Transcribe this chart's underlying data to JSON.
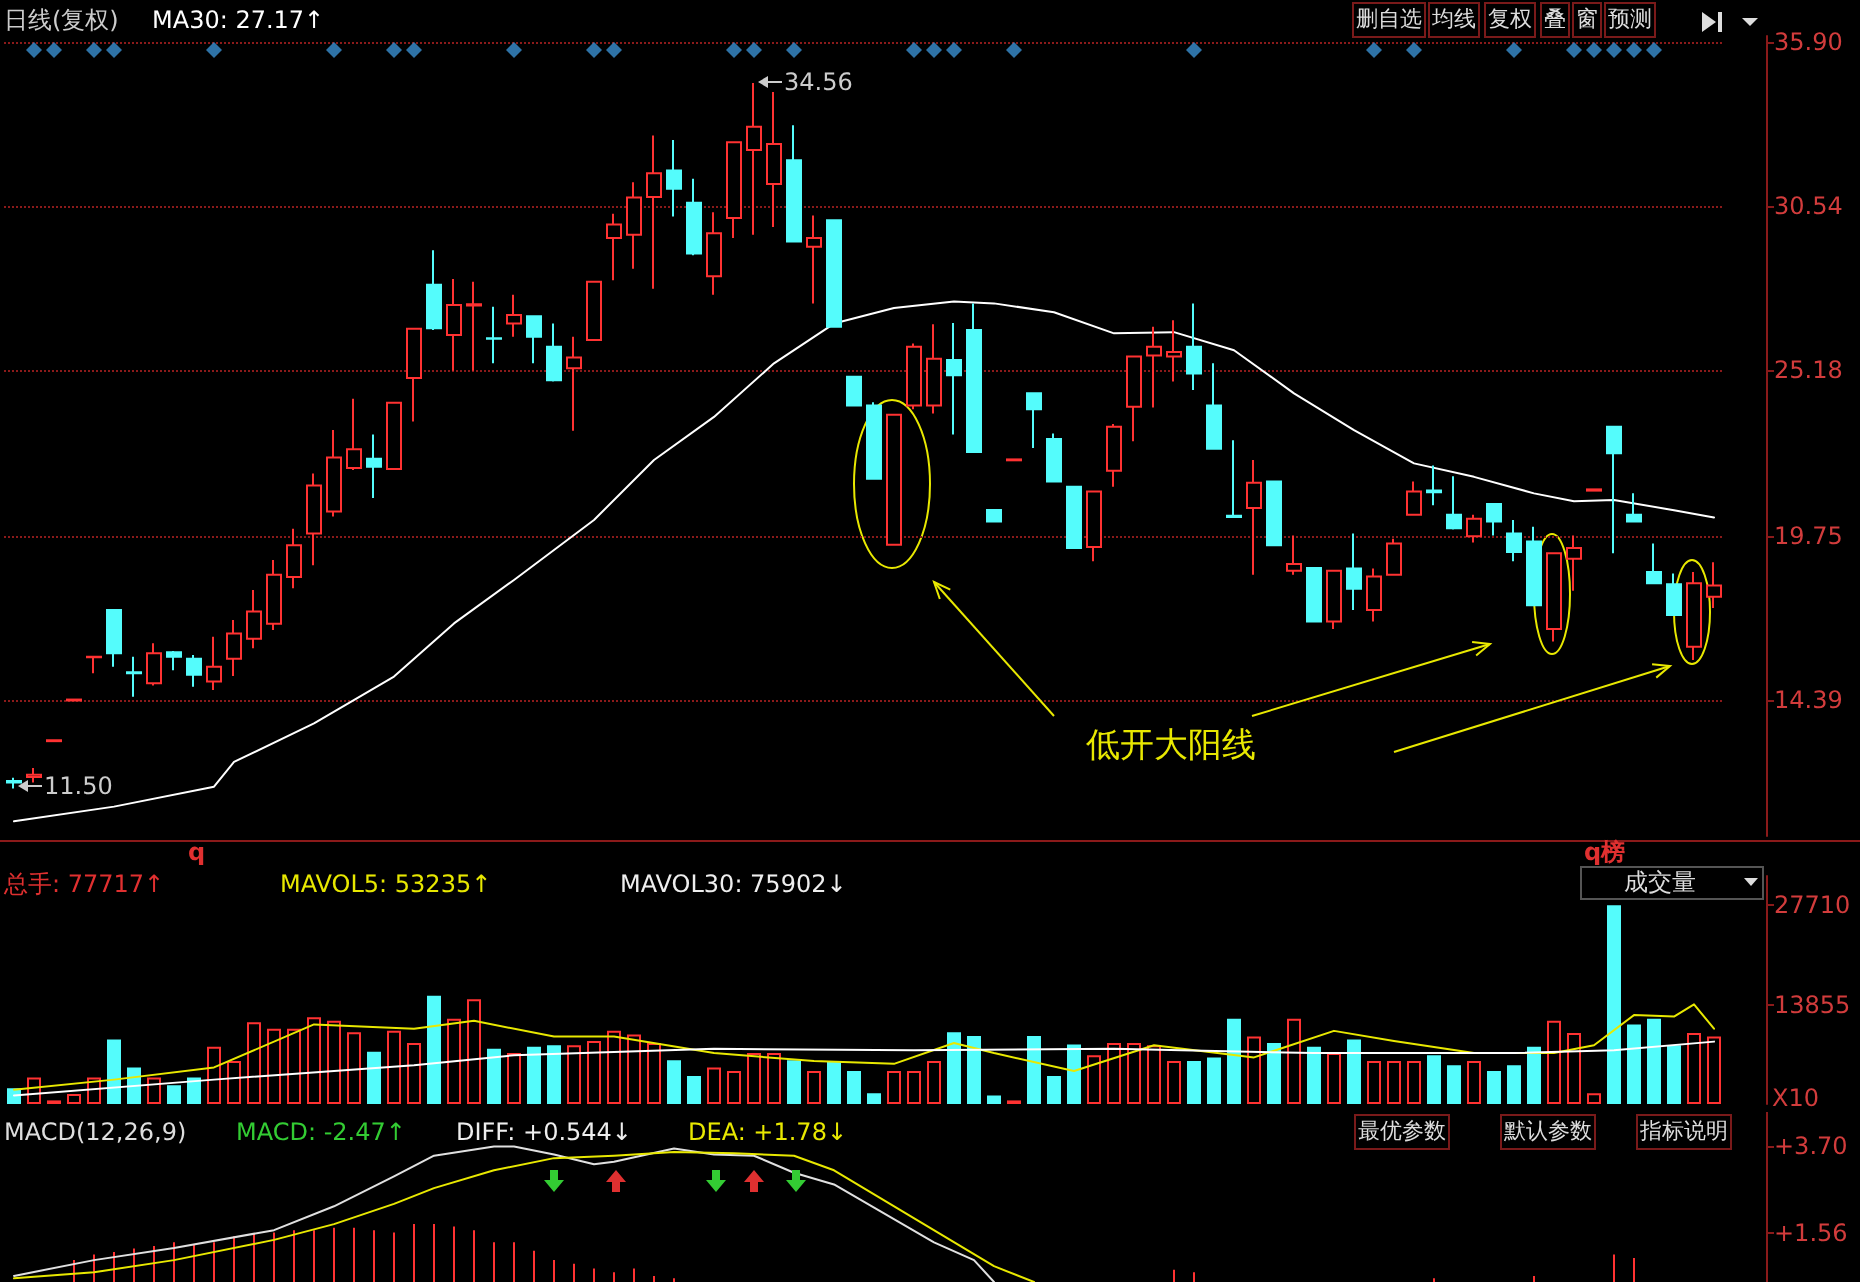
{
  "chart_data": [
    {
      "type": "candlestick",
      "title": "日线(复权)",
      "subtitle": "MA30: 27.17↑",
      "categories": [
        null,
        null,
        null,
        null,
        null,
        null,
        null,
        null,
        null,
        null,
        null,
        null,
        null,
        null,
        null,
        null,
        null,
        null,
        null,
        null,
        null,
        null,
        null,
        null,
        null,
        null,
        null,
        null,
        null,
        null,
        null,
        null,
        null,
        null,
        null,
        null,
        null,
        null,
        null,
        null,
        null,
        null,
        null,
        null,
        null,
        null,
        null,
        null,
        null,
        null,
        null,
        null,
        null,
        null,
        null,
        null,
        null,
        null,
        null,
        null,
        null,
        null,
        null,
        null,
        null,
        null,
        null,
        null,
        null,
        null,
        null,
        null,
        null,
        null,
        null,
        null,
        null,
        null,
        null,
        null,
        null,
        null,
        null,
        null,
        null,
        null
      ],
      "ohlc": [
        [
          11.75,
          11.85,
          11.5,
          11.7
        ],
        [
          11.88,
          12.17,
          11.7,
          11.95
        ],
        [
          13.05,
          13.08,
          13.05,
          13.08
        ],
        [
          14.38,
          14.41,
          14.38,
          14.41
        ],
        [
          15.79,
          15.81,
          15.27,
          15.81
        ],
        [
          17.34,
          17.34,
          15.48,
          15.92
        ],
        [
          15.3,
          15.81,
          14.5,
          15.27
        ],
        [
          14.94,
          16.25,
          14.87,
          15.92
        ],
        [
          15.96,
          16.0,
          15.37,
          15.81
        ],
        [
          15.74,
          15.87,
          14.83,
          15.22
        ],
        [
          15.0,
          16.46,
          14.72,
          15.48
        ],
        [
          15.74,
          17.01,
          15.18,
          16.57
        ],
        [
          16.4,
          17.99,
          16.09,
          17.29
        ],
        [
          16.89,
          18.97,
          16.68,
          18.49
        ],
        [
          18.42,
          19.99,
          18.05,
          19.45
        ],
        [
          19.84,
          21.8,
          18.8,
          21.41
        ],
        [
          20.56,
          23.22,
          20.39,
          22.32
        ],
        [
          21.98,
          24.24,
          21.91,
          22.59
        ],
        [
          22.28,
          23.07,
          21.0,
          22.02
        ],
        [
          21.95,
          24.11,
          21.95,
          24.11
        ],
        [
          24.92,
          26.53,
          23.5,
          26.53
        ],
        [
          27.97,
          29.1,
          26.49,
          26.55
        ],
        [
          26.33,
          28.16,
          25.16,
          27.31
        ],
        [
          27.29,
          28.07,
          25.16,
          27.33
        ],
        [
          26.22,
          27.25,
          25.4,
          26.2
        ],
        [
          26.7,
          27.64,
          26.27,
          26.98
        ],
        [
          26.94,
          26.94,
          25.4,
          26.27
        ],
        [
          25.94,
          26.7,
          24.81,
          24.85
        ],
        [
          25.24,
          26.27,
          23.2,
          25.59
        ],
        [
          26.16,
          28.07,
          26.16,
          28.07
        ],
        [
          29.5,
          30.29,
          28.12,
          29.94
        ],
        [
          29.6,
          31.32,
          28.49,
          30.82
        ],
        [
          30.84,
          32.85,
          27.84,
          31.61
        ],
        [
          31.7,
          32.7,
          30.2,
          31.11
        ],
        [
          30.65,
          31.43,
          28.93,
          28.99
        ],
        [
          28.25,
          30.34,
          27.64,
          29.65
        ],
        [
          30.15,
          32.63,
          29.5,
          32.63
        ],
        [
          32.37,
          34.56,
          29.6,
          33.13
        ],
        [
          31.26,
          34.27,
          29.86,
          32.57
        ],
        [
          32.04,
          33.18,
          29.38,
          29.38
        ],
        [
          29.21,
          30.23,
          27.36,
          29.5
        ],
        [
          30.08,
          30.08,
          26.6,
          26.6
        ],
        [
          24.96,
          24.96,
          24.02,
          24.02
        ],
        [
          24.02,
          24.13,
          21.63,
          21.63
        ],
        [
          19.47,
          23.72,
          19.47,
          23.72
        ],
        [
          24.02,
          26.05,
          23.9,
          25.94
        ],
        [
          24.02,
          26.68,
          23.76,
          25.55
        ],
        [
          25.51,
          26.72,
          23.07,
          25.01
        ],
        [
          26.49,
          27.36,
          22.5,
          22.5
        ],
        [
          20.61,
          20.61,
          20.23,
          20.23
        ],
        [
          22.23,
          22.26,
          22.23,
          22.26
        ],
        [
          24.42,
          24.42,
          22.63,
          23.9
        ],
        [
          22.93,
          23.11,
          21.54,
          21.54
        ],
        [
          21.37,
          21.37,
          19.36,
          19.36
        ],
        [
          19.4,
          21.21,
          18.93,
          21.21
        ],
        [
          21.89,
          23.42,
          21.37,
          23.33
        ],
        [
          23.98,
          25.62,
          22.85,
          25.62
        ],
        [
          25.66,
          26.6,
          23.96,
          25.94
        ],
        [
          25.62,
          26.81,
          24.81,
          25.77
        ],
        [
          25.94,
          27.36,
          24.53,
          25.07
        ],
        [
          24.02,
          25.4,
          22.61,
          22.61
        ],
        [
          20.42,
          22.89,
          20.38,
          20.38
        ],
        [
          20.67,
          22.24,
          18.49,
          21.5
        ],
        [
          21.54,
          21.54,
          19.45,
          19.45
        ],
        [
          18.62,
          19.77,
          18.49,
          18.84
        ],
        [
          18.71,
          18.71,
          16.96,
          16.96
        ],
        [
          16.96,
          18.62,
          16.72,
          18.62
        ],
        [
          18.69,
          19.84,
          17.34,
          18.03
        ],
        [
          17.34,
          18.69,
          16.96,
          18.43
        ],
        [
          18.49,
          19.67,
          18.49,
          19.51
        ],
        [
          20.45,
          21.54,
          20.45,
          21.21
        ],
        [
          21.24,
          22.06,
          20.76,
          21.19
        ],
        [
          20.45,
          21.71,
          19.97,
          20.01
        ],
        [
          19.75,
          20.45,
          19.54,
          20.32
        ],
        [
          20.8,
          20.8,
          19.77,
          20.23
        ],
        [
          19.84,
          20.28,
          18.93,
          19.23
        ],
        [
          19.58,
          20.06,
          17.49,
          17.49
        ],
        [
          16.72,
          19.19,
          16.31,
          19.19
        ],
        [
          19.01,
          19.77,
          17.97,
          19.36
        ],
        [
          21.24,
          21.28,
          21.24,
          21.28
        ],
        [
          23.33,
          23.33,
          19.19,
          22.46
        ],
        [
          20.45,
          21.15,
          20.23,
          20.23
        ],
        [
          18.58,
          19.51,
          18.21,
          18.21
        ],
        [
          18.18,
          18.53,
          17.17,
          17.17
        ],
        [
          16.14,
          18.58,
          15.7,
          18.21
        ],
        [
          17.77,
          18.9,
          17.4,
          18.14
        ]
      ],
      "colors": [
        "#54fcfc",
        "#ff3232",
        "#ff3232",
        "#ff3232",
        "#ff3232",
        "#54fcfc",
        "#54fcfc",
        "#ff3232",
        "#54fcfc",
        "#54fcfc",
        "#ff3232",
        "#ff3232",
        "#ff3232",
        "#ff3232",
        "#ff3232",
        "#ff3232",
        "#ff3232",
        "#ff3232",
        "#54fcfc",
        "#ff3232",
        "#ff3232",
        "#54fcfc",
        "#ff3232",
        "#ff3232",
        "#54fcfc",
        "#ff3232",
        "#54fcfc",
        "#54fcfc",
        "#ff3232",
        "#ff3232",
        "#ff3232",
        "#ff3232",
        "#ff3232",
        "#54fcfc",
        "#54fcfc",
        "#ff3232",
        "#ff3232",
        "#ff3232",
        "#ff3232",
        "#54fcfc",
        "#ff3232",
        "#54fcfc",
        "#54fcfc",
        "#54fcfc",
        "#ff3232",
        "#ff3232",
        "#ff3232",
        "#54fcfc",
        "#54fcfc",
        "#54fcfc",
        "#ff3232",
        "#54fcfc",
        "#54fcfc",
        "#54fcfc",
        "#ff3232",
        "#ff3232",
        "#ff3232",
        "#ff3232",
        "#ff3232",
        "#54fcfc",
        "#54fcfc",
        "#54fcfc",
        "#ff3232",
        "#54fcfc",
        "#ff3232",
        "#54fcfc",
        "#ff3232",
        "#54fcfc",
        "#ff3232",
        "#ff3232",
        "#ff3232",
        "#54fcfc",
        "#54fcfc",
        "#ff3232",
        "#54fcfc",
        "#54fcfc",
        "#54fcfc",
        "#ff3232",
        "#ff3232",
        "#ff3232",
        "#54fcfc",
        "#54fcfc",
        "#54fcfc",
        "#54fcfc",
        "#ff3232",
        "#ff3232"
      ],
      "series": [
        {
          "type": "line",
          "color": "#ffffff",
          "marker": "none",
          "line_style": "solid",
          "values": [
            10.43,
            null,
            null,
            null,
            null,
            10.91,
            null,
            null,
            null,
            null,
            11.56,
            12.37,
            null,
            null,
            null,
            13.63,
            null,
            null,
            null,
            15.16,
            null,
            null,
            16.9,
            null,
            null,
            18.32,
            null,
            null,
            null,
            20.28,
            null,
            null,
            22.24,
            null,
            null,
            23.65,
            null,
            null,
            25.4,
            null,
            null,
            26.7,
            null,
            null,
            27.21,
            null,
            null,
            27.42,
            null,
            27.36,
            null,
            null,
            27.07,
            null,
            null,
            26.38,
            null,
            null,
            26.42,
            null,
            null,
            25.83,
            null,
            null,
            24.42,
            null,
            null,
            23.22,
            null,
            null,
            22.13,
            null,
            null,
            21.69,
            null,
            null,
            21.15,
            null,
            20.89,
            null,
            20.93,
            null,
            null,
            20.6,
            null,
            20.36
          ]
        },
        {
          "type": "scatter",
          "color": "#3a8fd0",
          "marker": "diamond",
          "values": [
            null,
            35.64,
            35.64,
            null,
            35.64,
            35.64,
            null,
            null,
            null,
            null,
            35.64,
            null,
            null,
            null,
            null,
            null,
            35.64,
            null,
            null,
            35.64,
            35.64,
            null,
            null,
            null,
            null,
            35.64,
            null,
            null,
            null,
            35.64,
            35.64,
            null,
            null,
            null,
            null,
            null,
            35.64,
            35.64,
            null,
            35.64,
            null,
            null,
            null,
            null,
            null,
            35.64,
            35.64,
            35.64,
            null,
            null,
            35.64,
            null,
            null,
            null,
            null,
            null,
            null,
            null,
            null,
            35.64,
            null,
            null,
            null,
            null,
            null,
            null,
            null,
            null,
            35.64,
            null,
            35.64,
            null,
            null,
            null,
            null,
            35.64,
            null,
            null,
            35.64,
            35.64,
            35.64,
            35.64,
            35.64,
            null,
            null,
            null
          ]
        }
      ],
      "ylim": [
        9.95,
        36.1
      ],
      "yticks": [
        {
          "value": 14.39,
          "label": "14.39"
        },
        {
          "value": 19.75,
          "label": "19.75"
        },
        {
          "value": 25.18,
          "label": "25.18"
        },
        {
          "value": 30.54,
          "label": "30.54"
        },
        {
          "value": 35.9,
          "label": "35.90"
        }
      ],
      "grid": "y",
      "tick_labels": "y",
      "annotations": [
        "删自选",
        "均线",
        "复权",
        "叠",
        "窗",
        "预测",
        "q",
        "q榜",
        "低开大阳线",
        "34.56",
        "11.50"
      ]
    },
    {
      "type": "bar",
      "categories": [
        null,
        null,
        null,
        null,
        null,
        null,
        null,
        null,
        null,
        null,
        null,
        null,
        null,
        null,
        null,
        null,
        null,
        null,
        null,
        null,
        null,
        null,
        null,
        null,
        null,
        null,
        null,
        null,
        null,
        null,
        null,
        null,
        null,
        null,
        null,
        null,
        null,
        null,
        null,
        null,
        null,
        null,
        null,
        null,
        null,
        null,
        null,
        null,
        null,
        null,
        null,
        null,
        null,
        null,
        null,
        null,
        null,
        null,
        null,
        null,
        null,
        null,
        null,
        null,
        null,
        null,
        null,
        null,
        null,
        null,
        null,
        null,
        null,
        null,
        null,
        null,
        null,
        null,
        null,
        null,
        null,
        null,
        null,
        null,
        null,
        null
      ],
      "values": [
        2200,
        3700,
        500,
        1400,
        3700,
        9000,
        5100,
        3700,
        2600,
        3700,
        8000,
        6000,
        11400,
        10500,
        10500,
        12100,
        11600,
        10000,
        7300,
        10200,
        8500,
        15100,
        11900,
        14600,
        7700,
        7100,
        8000,
        8200,
        8200,
        8800,
        10200,
        9700,
        8500,
        6100,
        3900,
        5100,
        4600,
        7100,
        7100,
        6100,
        4600,
        6000,
        4600,
        1500,
        4600,
        4600,
        6000,
        10000,
        9500,
        1200,
        500,
        9500,
        3900,
        8300,
        6800,
        8500,
        8500,
        8200,
        6000,
        6000,
        6500,
        11900,
        9400,
        8500,
        11900,
        8000,
        7100,
        9000,
        6000,
        6000,
        6000,
        6800,
        5400,
        6000,
        4600,
        5400,
        8000,
        11600,
        9900,
        1500,
        27710,
        11100,
        11900,
        8200,
        9900,
        9400
      ],
      "colors": [
        "#54fcfc",
        "#ff3232",
        "#ff3232",
        "#ff3232",
        "#ff3232",
        "#54fcfc",
        "#54fcfc",
        "#ff3232",
        "#54fcfc",
        "#54fcfc",
        "#ff3232",
        "#ff3232",
        "#ff3232",
        "#ff3232",
        "#ff3232",
        "#ff3232",
        "#ff3232",
        "#ff3232",
        "#54fcfc",
        "#ff3232",
        "#ff3232",
        "#54fcfc",
        "#ff3232",
        "#ff3232",
        "#54fcfc",
        "#ff3232",
        "#54fcfc",
        "#54fcfc",
        "#ff3232",
        "#ff3232",
        "#ff3232",
        "#ff3232",
        "#ff3232",
        "#54fcfc",
        "#54fcfc",
        "#ff3232",
        "#ff3232",
        "#ff3232",
        "#ff3232",
        "#54fcfc",
        "#ff3232",
        "#54fcfc",
        "#54fcfc",
        "#54fcfc",
        "#ff3232",
        "#ff3232",
        "#ff3232",
        "#54fcfc",
        "#54fcfc",
        "#54fcfc",
        "#ff3232",
        "#54fcfc",
        "#54fcfc",
        "#54fcfc",
        "#ff3232",
        "#ff3232",
        "#ff3232",
        "#ff3232",
        "#ff3232",
        "#54fcfc",
        "#54fcfc",
        "#54fcfc",
        "#ff3232",
        "#54fcfc",
        "#ff3232",
        "#54fcfc",
        "#ff3232",
        "#54fcfc",
        "#ff3232",
        "#ff3232",
        "#ff3232",
        "#54fcfc",
        "#54fcfc",
        "#ff3232",
        "#54fcfc",
        "#54fcfc",
        "#54fcfc",
        "#ff3232",
        "#ff3232",
        "#ff3232",
        "#54fcfc",
        "#54fcfc",
        "#54fcfc",
        "#54fcfc",
        "#ff3232",
        "#ff3232"
      ],
      "series": [
        {
          "type": "line",
          "color": "#e8e800",
          "marker": "none",
          "values": [
            2000,
            null,
            null,
            null,
            null,
            3400,
            null,
            null,
            null,
            null,
            5100,
            null,
            null,
            null,
            null,
            11100,
            null,
            null,
            null,
            null,
            10500,
            null,
            null,
            11600,
            null,
            null,
            null,
            9400,
            null,
            null,
            9400,
            null,
            null,
            null,
            null,
            7100,
            null,
            null,
            null,
            null,
            6000,
            null,
            null,
            null,
            5600,
            null,
            null,
            8500,
            null,
            7100,
            null,
            null,
            null,
            4600,
            null,
            null,
            null,
            8200,
            null,
            null,
            null,
            null,
            6500,
            null,
            null,
            null,
            10200,
            null,
            null,
            8800,
            null,
            null,
            null,
            7100,
            null,
            null,
            null,
            7100,
            null,
            8200,
            null,
            12400,
            null,
            12200,
            13900,
            10500
          ]
        },
        {
          "type": "line",
          "color": "#ffffff",
          "marker": "none",
          "values": [
            1200,
            null,
            null,
            null,
            null,
            null,
            null,
            null,
            null,
            null,
            3400,
            null,
            null,
            null,
            null,
            null,
            null,
            null,
            null,
            null,
            5400,
            null,
            null,
            null,
            null,
            6800,
            null,
            null,
            null,
            null,
            null,
            null,
            null,
            null,
            null,
            7700,
            null,
            null,
            null,
            null,
            null,
            null,
            null,
            null,
            null,
            7500,
            null,
            null,
            null,
            null,
            null,
            null,
            null,
            null,
            null,
            7700,
            null,
            null,
            null,
            null,
            null,
            null,
            null,
            null,
            null,
            7100,
            null,
            null,
            null,
            null,
            null,
            null,
            null,
            null,
            null,
            7100,
            null,
            null,
            null,
            null,
            7500,
            null,
            null,
            null,
            null,
            8700
          ]
        }
      ],
      "ylim": [
        0,
        31800
      ],
      "yticks": [
        13855,
        27710
      ],
      "ylabel": "X10",
      "tick_labels": "y",
      "annotations": [
        "总手: 77717↑",
        "MAVOL5: 53235↑",
        "MAVOL30: 75902↓",
        "成交量"
      ]
    },
    {
      "type": "line",
      "categories": [
        null,
        null,
        null,
        null,
        null,
        null,
        null,
        null,
        null,
        null,
        null,
        null,
        null,
        null,
        null,
        null,
        null,
        null,
        null,
        null,
        null,
        null,
        null,
        null,
        null,
        null,
        null,
        null,
        null,
        null,
        null,
        null,
        null,
        null,
        null,
        null,
        null,
        null,
        null,
        null,
        null,
        null,
        null,
        null,
        null,
        null,
        null,
        null,
        null,
        null,
        null,
        null,
        null,
        null,
        null,
        null,
        null,
        null,
        null,
        null,
        null,
        null,
        null,
        null,
        null,
        null,
        null,
        null,
        null,
        null,
        null,
        null,
        null,
        null,
        null,
        null,
        null,
        null,
        null,
        null,
        null,
        null,
        null,
        null,
        null,
        null
      ],
      "series": [
        {
          "type": "bar",
          "color": "#ff3232",
          "values": [
            null,
            null,
            null,
            0.89,
            1.03,
            1.09,
            1.18,
            1.24,
            1.33,
            1.27,
            1.33,
            1.48,
            1.54,
            1.57,
            1.63,
            1.63,
            1.69,
            1.69,
            1.63,
            1.57,
            1.78,
            1.78,
            1.72,
            1.63,
            1.33,
            1.33,
            1.12,
            0.89,
            0.8,
            0.68,
            0.59,
            0.68,
            0.5,
            0.44,
            null,
            null,
            null,
            null,
            null,
            null,
            null,
            null,
            null,
            null,
            null,
            null,
            null,
            null,
            null,
            null,
            null,
            null,
            null,
            null,
            null,
            null,
            null,
            null,
            0.65,
            0.59,
            null,
            null,
            null,
            null,
            null,
            null,
            null,
            null,
            null,
            null,
            null,
            0.44,
            null,
            null,
            null,
            null,
            0.5,
            null,
            null,
            null,
            1.03,
            0.94,
            null,
            null,
            null,
            null
          ]
        },
        {
          "type": "line",
          "color": "#e0e0e0",
          "marker": "none",
          "values": [
            0.5,
            null,
            null,
            null,
            0.89,
            null,
            null,
            null,
            1.19,
            null,
            null,
            null,
            null,
            1.63,
            null,
            null,
            2.22,
            null,
            null,
            2.96,
            null,
            3.47,
            null,
            null,
            3.7,
            3.7,
            null,
            3.5,
            null,
            3.26,
            3.32,
            null,
            null,
            3.65,
            null,
            3.5,
            null,
            3.47,
            null,
            3.05,
            null,
            2.76,
            null,
            null,
            null,
            null,
            1.33,
            null,
            0.89,
            0.35,
            null,
            null,
            null,
            null,
            null,
            null,
            null,
            null,
            null,
            null,
            null,
            null,
            null,
            null,
            null,
            null,
            null,
            null,
            null,
            null,
            null,
            null,
            null,
            null,
            null,
            null,
            null,
            null,
            null,
            null,
            null,
            null,
            null,
            null,
            null,
            null
          ]
        },
        {
          "type": "line",
          "color": "#e8e800",
          "marker": "none",
          "values": [
            0.44,
            null,
            null,
            null,
            0.59,
            null,
            null,
            null,
            0.89,
            null,
            null,
            null,
            null,
            1.39,
            null,
            null,
            1.78,
            null,
            null,
            2.28,
            null,
            2.67,
            null,
            null,
            3.11,
            null,
            null,
            3.41,
            null,
            null,
            3.47,
            null,
            null,
            3.56,
            null,
            null,
            3.53,
            null,
            null,
            3.47,
            null,
            3.11,
            null,
            null,
            null,
            null,
            null,
            null,
            null,
            0.74,
            null,
            0.35,
            null,
            null,
            null,
            null,
            null,
            null,
            null,
            null,
            null,
            null,
            null,
            null,
            null,
            null,
            null,
            null,
            null,
            null,
            null,
            null,
            null,
            null,
            null,
            null,
            null,
            null,
            null,
            null,
            null,
            null,
            null,
            null,
            null,
            null
          ]
        }
      ],
      "ylim": [
        0.3,
        4.55
      ],
      "yticks": [
        {
          "value": 1.56,
          "label": "+1.56"
        },
        {
          "value": 3.7,
          "label": "+3.70"
        }
      ],
      "tick_labels": "y",
      "annotations": [
        "MACD(12,26,9)",
        "MACD: -2.47↑",
        "DIFF: +0.544↓",
        "DEA: +1.78↓",
        "最优参数",
        "默认参数",
        "指标说明"
      ]
    }
  ]
}
